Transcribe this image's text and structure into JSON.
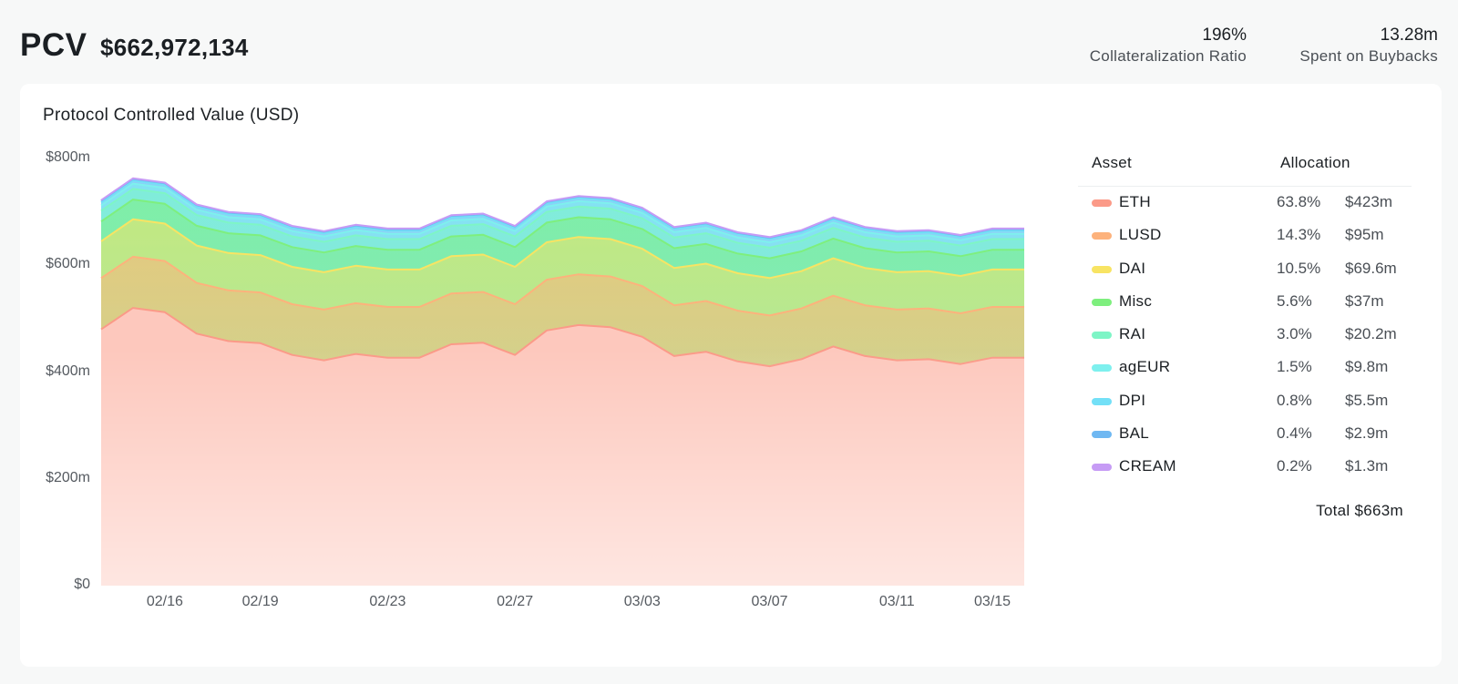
{
  "header": {
    "title": "PCV",
    "value": "$662,972,134",
    "stats": [
      {
        "value": "196%",
        "label": "Collateralization Ratio"
      },
      {
        "value": "13.28m",
        "label": "Spent on Buybacks"
      }
    ]
  },
  "legend": {
    "asset_header": "Asset",
    "allocation_header": "Allocation",
    "items": [
      {
        "name": "ETH",
        "pct": "63.8%",
        "amount": "$423m",
        "color": "#fb9a88"
      },
      {
        "name": "LUSD",
        "pct": "14.3%",
        "amount": "$95m",
        "color": "#fdb27c"
      },
      {
        "name": "DAI",
        "pct": "10.5%",
        "amount": "$69.6m",
        "color": "#f8e463"
      },
      {
        "name": "Misc",
        "pct": "5.6%",
        "amount": "$37m",
        "color": "#7eef7e"
      },
      {
        "name": "RAI",
        "pct": "3.0%",
        "amount": "$20.2m",
        "color": "#7ef5c6"
      },
      {
        "name": "agEUR",
        "pct": "1.5%",
        "amount": "$9.8m",
        "color": "#7ef0ee"
      },
      {
        "name": "DPI",
        "pct": "0.8%",
        "amount": "$5.5m",
        "color": "#73e0f7"
      },
      {
        "name": "BAL",
        "pct": "0.4%",
        "amount": "$2.9m",
        "color": "#6fb8f2"
      },
      {
        "name": "CREAM",
        "pct": "0.2%",
        "amount": "$1.3m",
        "color": "#c69bf5"
      }
    ],
    "total": "Total $663m"
  },
  "chart_data": {
    "type": "area",
    "stacked": true,
    "title": "Protocol Controlled Value (USD)",
    "xlabel": "",
    "ylabel": "",
    "ylim": [
      0,
      800
    ],
    "y_unit": "$m",
    "y_ticks": [
      "$0",
      "$200m",
      "$400m",
      "$600m",
      "$800m"
    ],
    "y_tick_values": [
      0,
      200,
      400,
      600,
      800
    ],
    "x_tick_labels": [
      {
        "label": "02/16",
        "index": 2
      },
      {
        "label": "02/19",
        "index": 5
      },
      {
        "label": "02/23",
        "index": 9
      },
      {
        "label": "02/27",
        "index": 13
      },
      {
        "label": "03/03",
        "index": 17
      },
      {
        "label": "03/07",
        "index": 21
      },
      {
        "label": "03/11",
        "index": 25
      },
      {
        "label": "03/15",
        "index": 28
      }
    ],
    "x": [
      "02/14",
      "02/15",
      "02/16",
      "02/17",
      "02/18",
      "02/19",
      "02/20",
      "02/21",
      "02/22",
      "02/23",
      "02/24",
      "02/25",
      "02/26",
      "02/27",
      "02/28",
      "03/01",
      "03/02",
      "03/03",
      "03/04",
      "03/05",
      "03/06",
      "03/07",
      "03/08",
      "03/09",
      "03/10",
      "03/11",
      "03/12",
      "03/13",
      "03/14",
      "03/15"
    ],
    "series": [
      {
        "name": "ETH",
        "color": "#fb9a88",
        "values": [
          480,
          520,
          512,
          472,
          458,
          454,
          432,
          422,
          434,
          427,
          427,
          452,
          455,
          432,
          478,
          488,
          484,
          466,
          430,
          438,
          420,
          411,
          424,
          448,
          430,
          422,
          424,
          415,
          427,
          427
        ]
      },
      {
        "name": "LUSD",
        "color": "#fdb27c",
        "values": [
          96,
          96,
          96,
          95,
          95,
          95,
          95,
          95,
          95,
          95,
          95,
          95,
          95,
          95,
          95,
          95,
          95,
          95,
          95,
          95,
          95,
          95,
          95,
          95,
          95,
          95,
          95,
          95,
          95,
          95
        ]
      },
      {
        "name": "DAI",
        "color": "#f8e463",
        "values": [
          69,
          70,
          70,
          70,
          70,
          70,
          70,
          70,
          70,
          70,
          70,
          70,
          70,
          70,
          70,
          70,
          70,
          70,
          70,
          70,
          70,
          70,
          70,
          70,
          70,
          70,
          70,
          70,
          70,
          70
        ]
      },
      {
        "name": "Misc",
        "color": "#7eef7e",
        "values": [
          37,
          37,
          37,
          37,
          37,
          37,
          37,
          37,
          37,
          37,
          37,
          37,
          37,
          37,
          37,
          37,
          37,
          37,
          37,
          37,
          37,
          37,
          37,
          37,
          37,
          37,
          37,
          37,
          37,
          37
        ]
      },
      {
        "name": "RAI",
        "color": "#7ef5c6",
        "values": [
          20,
          20,
          20,
          20,
          20,
          20,
          20,
          20,
          20,
          20,
          20,
          20,
          20,
          20,
          20,
          20,
          20,
          20,
          20,
          20,
          20,
          20,
          20,
          20,
          20,
          20,
          20,
          20,
          20,
          20
        ]
      },
      {
        "name": "agEUR",
        "color": "#7ef0ee",
        "values": [
          10,
          10,
          10,
          10,
          10,
          10,
          10,
          10,
          10,
          10,
          10,
          10,
          10,
          10,
          10,
          10,
          10,
          10,
          10,
          10,
          10,
          10,
          10,
          10,
          10,
          10,
          10,
          10,
          10,
          10
        ]
      },
      {
        "name": "DPI",
        "color": "#73e0f7",
        "values": [
          5.5,
          5.5,
          5.5,
          5.5,
          5.5,
          5.5,
          5.5,
          5.5,
          5.5,
          5.5,
          5.5,
          5.5,
          5.5,
          5.5,
          5.5,
          5.5,
          5.5,
          5.5,
          5.5,
          5.5,
          5.5,
          5.5,
          5.5,
          5.5,
          5.5,
          5.5,
          5.5,
          5.5,
          5.5,
          5.5
        ]
      },
      {
        "name": "BAL",
        "color": "#6fb8f2",
        "values": [
          3,
          3,
          3,
          3,
          3,
          3,
          3,
          3,
          3,
          3,
          3,
          3,
          3,
          3,
          3,
          3,
          3,
          3,
          3,
          3,
          3,
          3,
          3,
          3,
          3,
          3,
          3,
          3,
          3,
          3
        ]
      },
      {
        "name": "CREAM",
        "color": "#c69bf5",
        "values": [
          1.3,
          1.3,
          1.3,
          1.3,
          1.3,
          1.3,
          1.3,
          1.3,
          1.3,
          1.3,
          1.3,
          1.3,
          1.3,
          1.3,
          1.3,
          1.3,
          1.3,
          1.3,
          1.3,
          1.3,
          1.3,
          1.3,
          1.3,
          1.3,
          1.3,
          1.3,
          1.3,
          1.3,
          1.3,
          1.3
        ]
      }
    ],
    "grid": false,
    "legend_position": "right"
  }
}
